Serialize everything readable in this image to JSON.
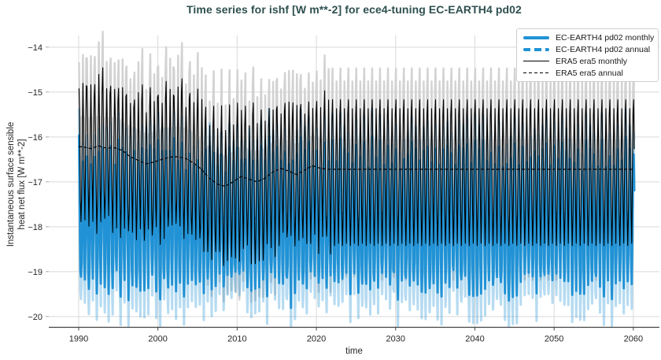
{
  "chart_data": {
    "type": "line",
    "title": "Time series for ishf [W m**-2] for ece4-tuning EC-EARTH4 pd02",
    "xlabel": "time",
    "ylabel": "Instantaneous surface sensible\nheat net flux [W m**-2]",
    "xlim": [
      1986.23,
      2063.29
    ],
    "ylim": [
      -20.24,
      -13.74
    ],
    "xticks": [
      1990,
      2000,
      2010,
      2020,
      2030,
      2040,
      2050,
      2060
    ],
    "yticks": [
      -14,
      -15,
      -16,
      -17,
      -18,
      -19,
      -20
    ],
    "grid": true,
    "legend_position": "upper right",
    "years_range": [
      1990,
      2060
    ],
    "colors": {
      "model": "#2192d5",
      "reference": "#000000",
      "grid": "#d9d9d9",
      "spine": "#444444",
      "envelope_gray": "#d2d2d2",
      "band_gray": "rgba(130,130,130,0.35)",
      "envelope_blue": "rgba(33,146,213,0.33)",
      "band_blue": "rgba(33,146,213,0.13)"
    },
    "annual_values": {
      "era5": [
        -16.22,
        -16.26,
        -16.2,
        -16.25,
        -16.24,
        -16.3,
        -16.44,
        -16.52,
        -16.6,
        -16.56,
        -16.5,
        -16.45,
        -16.44,
        -16.48,
        -16.58,
        -16.72,
        -16.92,
        -17.05,
        -17.1,
        -17.0,
        -16.88,
        -16.94,
        -17.0,
        -16.92,
        -16.78,
        -16.7,
        -16.76,
        -16.84,
        -16.74,
        -16.64,
        -16.7,
        -16.72,
        -16.72,
        -16.72,
        -16.72,
        -16.72,
        -16.72,
        -16.72,
        -16.72,
        -16.72,
        -16.72,
        -16.72,
        -16.72,
        -16.72,
        -16.72,
        -16.72,
        -16.72,
        -16.72,
        -16.72,
        -16.72,
        -16.72,
        -16.72,
        -16.72,
        -16.72,
        -16.72,
        -16.72,
        -16.72,
        -16.72,
        -16.72,
        -16.72,
        -16.72,
        -16.72,
        -16.72,
        -16.72,
        -16.72,
        -16.72,
        -16.72,
        -16.72,
        -16.72,
        -16.72,
        -16.72
      ],
      "ec": [
        -17.7,
        -17.78,
        -17.82,
        -17.74,
        -17.69,
        -17.76,
        -17.84,
        -17.79,
        -17.71,
        -17.75,
        -17.81,
        -17.73,
        -17.68,
        -17.77,
        -17.85,
        -17.78,
        -17.7,
        -17.74,
        -17.82,
        -17.76,
        -17.69,
        -17.75,
        -17.83,
        -17.79,
        -17.72,
        -17.67,
        -17.76,
        -17.84,
        -17.77,
        -17.7,
        -17.74,
        -17.81,
        -17.75,
        -17.68,
        -17.73,
        -17.86,
        -17.8,
        -17.72,
        -17.69,
        -17.77,
        -17.83,
        -17.75,
        -17.7,
        -17.78,
        -17.84,
        -17.76,
        -17.71,
        -17.66,
        -17.75,
        -17.82,
        -17.78,
        -17.7,
        -17.73,
        -17.8,
        -17.85,
        -17.77,
        -17.69,
        -17.74,
        -17.81,
        -17.75,
        -17.68,
        -17.72,
        -17.79,
        -17.83,
        -17.76,
        -17.7,
        -17.75,
        -17.82,
        -17.77,
        -17.71,
        -17.74
      ]
    },
    "series": [
      {
        "id": "ec_monthly",
        "name": "EC-EARTH4 pd02 monthly",
        "type": "monthly",
        "color": "#2192d5",
        "style": "solid",
        "width": 2.8,
        "annual_ref": "ec",
        "seasonal_cycle": [
          1.5,
          0.35,
          -1.05,
          -1.55,
          -1.0,
          0.2,
          1.28,
          0.45,
          -0.95,
          -1.5,
          -0.4,
          1.1
        ],
        "noise_amp": 0.26,
        "noise_seed": 1000,
        "deep_trough_years": [
          2016,
          2035
        ]
      },
      {
        "id": "ec_annual",
        "name": "EC-EARTH4 pd02 annual",
        "type": "annual",
        "color": "#2192d5",
        "style": "dashed",
        "width": 3.2,
        "annual_ref": "ec"
      },
      {
        "id": "era5_monthly",
        "name": "ERA5 era5 monthly",
        "type": "monthly",
        "color": "#000000",
        "style": "solid",
        "width": 1.1,
        "annual_ref": "era5",
        "seasonal_cycle": [
          1.55,
          0.45,
          -0.95,
          -1.7,
          -1.05,
          0.25,
          1.35,
          0.5,
          -0.85,
          -1.65,
          -0.35,
          1.2
        ],
        "noise_amp": 0.25,
        "noise_seed": 0,
        "climatology_from": 2022
      },
      {
        "id": "era5_annual",
        "name": "ERA5 era5 annual",
        "type": "annual",
        "color": "#000000",
        "style": "dashed",
        "width": 1.2,
        "annual_ref": "era5"
      }
    ],
    "shading": {
      "era5_envelope_scale": 1.45,
      "ec_envelope_scale": 1.35,
      "era5_band": [
        0.68,
        0.85
      ],
      "ec_band": [
        0.6,
        0.6
      ]
    }
  }
}
